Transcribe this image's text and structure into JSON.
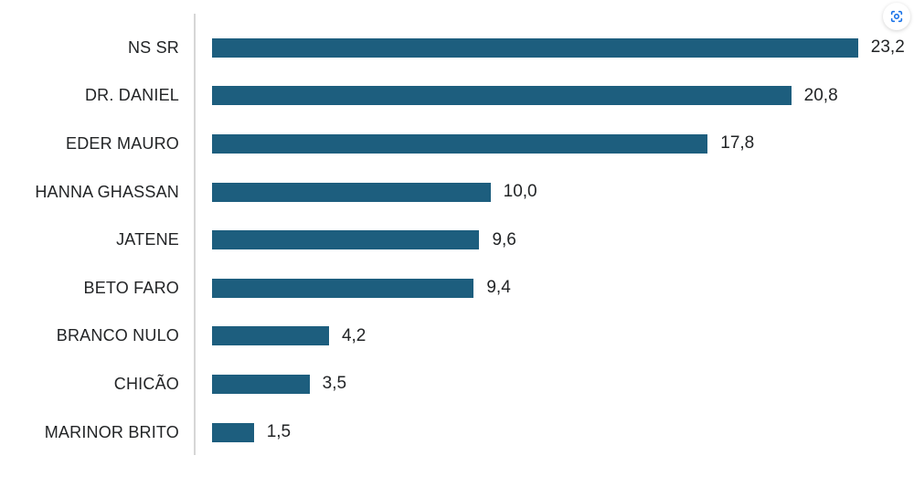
{
  "controls": {
    "scan_button": {
      "icon": "lens-scan-icon",
      "color": "#1a73e8"
    }
  },
  "chart_data": {
    "type": "bar",
    "orientation": "horizontal",
    "title": "",
    "xlabel": "",
    "ylabel": "",
    "xlim": [
      0,
      25.8
    ],
    "grid": false,
    "bar_color": "#1d5e7e",
    "axis_line_color": "#d6d6d6",
    "text_color": "#222426",
    "categories": [
      "NS SR",
      "DR. DANIEL",
      "EDER MAURO",
      "HANNA GHASSAN",
      "JATENE",
      "BETO FARO",
      "BRANCO NULO",
      "CHICÃO",
      "MARINOR BRITO"
    ],
    "values": [
      23.2,
      20.8,
      17.8,
      10.0,
      9.6,
      9.4,
      4.2,
      3.5,
      1.5
    ],
    "value_labels": [
      "23,2",
      "20,8",
      "17,8",
      "10,0",
      "9,6",
      "9,4",
      "4,2",
      "3,5",
      "1,5"
    ]
  }
}
